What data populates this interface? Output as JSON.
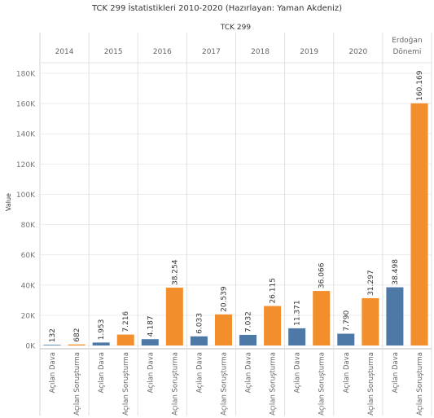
{
  "title": "TCK 299 İstatistikleri 2010-2020 (Hazırlayan: Yaman Akdeniz)",
  "chart_data": {
    "type": "bar",
    "column_header": "TCK 299",
    "ylabel": "Value",
    "ylim": [
      0,
      180000
    ],
    "yticks": [
      0,
      20000,
      40000,
      60000,
      80000,
      100000,
      120000,
      140000,
      160000,
      180000
    ],
    "ytick_labels": [
      "0K",
      "20K",
      "40K",
      "60K",
      "80K",
      "100K",
      "120K",
      "140K",
      "160K",
      "180K"
    ],
    "grid": true,
    "categories": [
      "2014",
      "2015",
      "2016",
      "2017",
      "2018",
      "2019",
      "2020",
      "Erdoğan Dönemi"
    ],
    "series": [
      {
        "name": "Açılan Dava",
        "color": "#4e79a7",
        "values": [
          132,
          1953,
          4187,
          6033,
          7032,
          11371,
          7790,
          38498
        ],
        "labels": [
          "132",
          "1.953",
          "4.187",
          "6.033",
          "7.032",
          "11.371",
          "7.790",
          "38.498"
        ]
      },
      {
        "name": "Açılan Soruşturma",
        "color": "#f28e2b",
        "values": [
          682,
          7216,
          38254,
          20539,
          26115,
          36066,
          31297,
          160169
        ],
        "labels": [
          "682",
          "7.216",
          "38.254",
          "20.539",
          "26.115",
          "36.066",
          "31.297",
          "160.169"
        ]
      }
    ]
  }
}
